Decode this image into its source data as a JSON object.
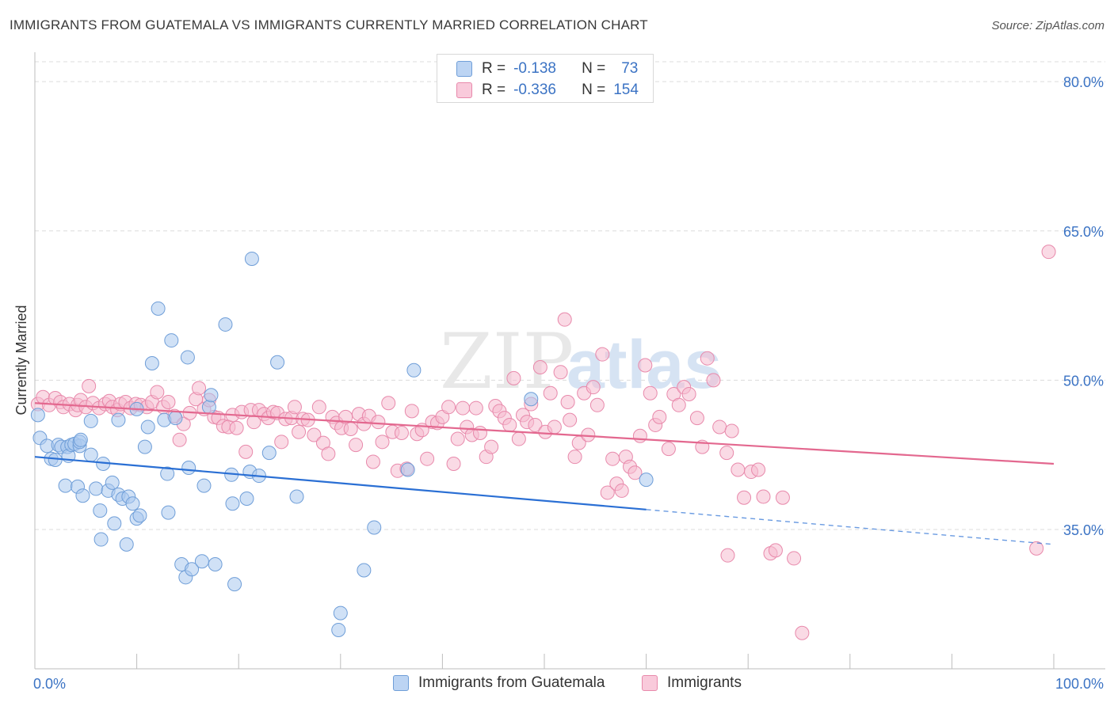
{
  "header": {
    "title": "IMMIGRANTS FROM GUATEMALA VS IMMIGRANTS CURRENTLY MARRIED CORRELATION CHART",
    "source": "Source: ZipAtlas.com"
  },
  "watermark": {
    "zip": "ZIP",
    "atlas": "atlas"
  },
  "legend_top": {
    "rows": [
      {
        "r_label": "R =",
        "r_value": "-0.138",
        "n_label": "N =",
        "n_value": "73"
      },
      {
        "r_label": "R =",
        "r_value": "-0.336",
        "n_label": "N =",
        "n_value": "154"
      }
    ]
  },
  "legend_bottom": {
    "items": [
      {
        "label": "Immigrants from Guatemala"
      },
      {
        "label": "Immigrants"
      }
    ]
  },
  "colors": {
    "blue_fill": "#aac8ee",
    "blue_stroke": "#6f9ed8",
    "blue_line": "#2a6fd4",
    "pink_fill": "#f6bcd0",
    "pink_stroke": "#e889ab",
    "pink_line": "#e3688f",
    "tick_label": "#3b73c4",
    "grid": "#dcdcdc"
  },
  "chart_data": {
    "type": "scatter",
    "title": "IMMIGRANTS FROM GUATEMALA VS IMMIGRANTS CURRENTLY MARRIED CORRELATION CHART",
    "xlabel": "",
    "ylabel": "Currently Married",
    "xlim": [
      0,
      100
    ],
    "ylim": [
      21,
      82
    ],
    "x_tick_labels": [
      "0.0%",
      "100.0%"
    ],
    "y_ticks": [
      35,
      50,
      65,
      80
    ],
    "y_tick_labels": [
      "35.0%",
      "50.0%",
      "65.0%",
      "80.0%"
    ],
    "grid": true,
    "legend_position": "top-center",
    "series": [
      {
        "name": "Immigrants from Guatemala",
        "color": "#aac8ee",
        "trend": {
          "x": [
            0,
            60
          ],
          "y": [
            42.3,
            37.0
          ],
          "dashed_to": [
            100,
            33.5
          ]
        },
        "points": [
          [
            0.5,
            44.2
          ],
          [
            1.2,
            43.4
          ],
          [
            1.6,
            42.1
          ],
          [
            2.0,
            42.0
          ],
          [
            2.3,
            43.5
          ],
          [
            2.6,
            43.3
          ],
          [
            3.2,
            43.3
          ],
          [
            3.3,
            42.4
          ],
          [
            3.6,
            43.5
          ],
          [
            3.9,
            43.6
          ],
          [
            4.4,
            43.4
          ],
          [
            4.4,
            43.8
          ],
          [
            4.5,
            44.0
          ],
          [
            3.0,
            39.4
          ],
          [
            4.2,
            39.3
          ],
          [
            4.7,
            38.4
          ],
          [
            5.5,
            42.5
          ],
          [
            6.0,
            39.1
          ],
          [
            6.4,
            36.9
          ],
          [
            6.5,
            34.0
          ],
          [
            6.7,
            41.6
          ],
          [
            7.2,
            38.9
          ],
          [
            7.6,
            39.7
          ],
          [
            7.8,
            35.6
          ],
          [
            8.2,
            38.5
          ],
          [
            8.6,
            38.1
          ],
          [
            9.0,
            33.5
          ],
          [
            9.2,
            38.3
          ],
          [
            9.6,
            37.6
          ],
          [
            10.0,
            36.1
          ],
          [
            10.3,
            36.4
          ],
          [
            10.8,
            43.3
          ],
          [
            11.1,
            45.3
          ],
          [
            11.5,
            51.7
          ],
          [
            12.1,
            57.2
          ],
          [
            12.7,
            46.0
          ],
          [
            13.0,
            40.6
          ],
          [
            13.1,
            36.7
          ],
          [
            13.4,
            54.0
          ],
          [
            13.8,
            46.2
          ],
          [
            14.4,
            31.5
          ],
          [
            14.8,
            30.2
          ],
          [
            15.0,
            52.3
          ],
          [
            15.1,
            41.2
          ],
          [
            15.4,
            31.0
          ],
          [
            16.4,
            31.8
          ],
          [
            16.6,
            39.4
          ],
          [
            17.1,
            47.3
          ],
          [
            17.3,
            48.5
          ],
          [
            17.7,
            31.5
          ],
          [
            18.7,
            55.6
          ],
          [
            19.3,
            40.5
          ],
          [
            19.4,
            37.6
          ],
          [
            19.6,
            29.5
          ],
          [
            20.8,
            38.1
          ],
          [
            21.1,
            40.8
          ],
          [
            21.3,
            62.2
          ],
          [
            22.0,
            40.4
          ],
          [
            23.0,
            42.7
          ],
          [
            23.8,
            51.8
          ],
          [
            25.7,
            38.3
          ],
          [
            29.8,
            24.9
          ],
          [
            30.0,
            26.6
          ],
          [
            32.3,
            30.9
          ],
          [
            33.3,
            35.2
          ],
          [
            36.6,
            41.0
          ],
          [
            37.2,
            51.0
          ],
          [
            48.7,
            48.1
          ],
          [
            10.0,
            47.1
          ],
          [
            60.0,
            40.0
          ],
          [
            5.5,
            45.9
          ],
          [
            8.2,
            46.0
          ],
          [
            0.3,
            46.5
          ]
        ]
      },
      {
        "name": "Immigrants",
        "color": "#f6bcd0",
        "trend": {
          "x": [
            0,
            100
          ],
          "y": [
            47.7,
            41.6
          ]
        },
        "points": [
          [
            0.3,
            47.6
          ],
          [
            0.8,
            48.3
          ],
          [
            1.4,
            47.5
          ],
          [
            2.0,
            48.2
          ],
          [
            2.5,
            47.8
          ],
          [
            2.8,
            47.3
          ],
          [
            3.4,
            47.6
          ],
          [
            4.0,
            47.0
          ],
          [
            4.2,
            47.5
          ],
          [
            4.5,
            48.0
          ],
          [
            5.0,
            47.3
          ],
          [
            5.3,
            49.4
          ],
          [
            5.7,
            47.7
          ],
          [
            6.3,
            47.2
          ],
          [
            6.9,
            47.6
          ],
          [
            7.3,
            47.9
          ],
          [
            7.6,
            47.3
          ],
          [
            8.1,
            47.0
          ],
          [
            8.4,
            47.6
          ],
          [
            8.9,
            47.8
          ],
          [
            9.4,
            47.2
          ],
          [
            9.9,
            47.6
          ],
          [
            10.4,
            47.5
          ],
          [
            11.0,
            47.3
          ],
          [
            11.5,
            47.8
          ],
          [
            12.0,
            48.8
          ],
          [
            12.6,
            47.3
          ],
          [
            13.1,
            47.8
          ],
          [
            13.7,
            46.4
          ],
          [
            14.2,
            44.0
          ],
          [
            14.6,
            45.6
          ],
          [
            15.2,
            46.7
          ],
          [
            15.8,
            48.1
          ],
          [
            16.1,
            49.2
          ],
          [
            16.6,
            47.1
          ],
          [
            17.1,
            48.0
          ],
          [
            17.6,
            46.3
          ],
          [
            18.0,
            46.2
          ],
          [
            18.5,
            45.4
          ],
          [
            19.0,
            45.3
          ],
          [
            19.4,
            46.5
          ],
          [
            19.8,
            45.2
          ],
          [
            20.3,
            46.8
          ],
          [
            20.7,
            42.8
          ],
          [
            21.2,
            47.0
          ],
          [
            21.5,
            45.8
          ],
          [
            22.0,
            47.0
          ],
          [
            22.5,
            46.6
          ],
          [
            22.9,
            46.2
          ],
          [
            23.4,
            46.8
          ],
          [
            23.8,
            46.7
          ],
          [
            24.2,
            43.8
          ],
          [
            24.6,
            46.1
          ],
          [
            25.2,
            46.2
          ],
          [
            25.5,
            47.3
          ],
          [
            25.9,
            44.8
          ],
          [
            26.3,
            46.1
          ],
          [
            26.8,
            46.0
          ],
          [
            27.4,
            44.5
          ],
          [
            27.9,
            47.3
          ],
          [
            28.3,
            43.7
          ],
          [
            28.8,
            42.6
          ],
          [
            29.2,
            46.3
          ],
          [
            29.6,
            45.7
          ],
          [
            30.1,
            45.2
          ],
          [
            30.5,
            46.3
          ],
          [
            31.0,
            45.1
          ],
          [
            31.5,
            43.5
          ],
          [
            31.8,
            46.6
          ],
          [
            32.3,
            45.6
          ],
          [
            32.8,
            46.4
          ],
          [
            33.2,
            41.8
          ],
          [
            33.7,
            45.8
          ],
          [
            34.1,
            43.8
          ],
          [
            34.7,
            47.7
          ],
          [
            35.1,
            44.8
          ],
          [
            35.6,
            40.9
          ],
          [
            36.0,
            44.7
          ],
          [
            36.5,
            41.1
          ],
          [
            37.0,
            46.9
          ],
          [
            37.5,
            44.6
          ],
          [
            38.0,
            45.0
          ],
          [
            38.5,
            42.1
          ],
          [
            39.0,
            45.8
          ],
          [
            39.5,
            45.7
          ],
          [
            40.0,
            46.3
          ],
          [
            40.6,
            47.3
          ],
          [
            41.1,
            41.6
          ],
          [
            41.5,
            44.1
          ],
          [
            42.0,
            47.2
          ],
          [
            42.4,
            45.3
          ],
          [
            42.9,
            44.5
          ],
          [
            43.3,
            47.2
          ],
          [
            43.7,
            44.7
          ],
          [
            44.3,
            42.3
          ],
          [
            44.8,
            43.3
          ],
          [
            45.2,
            47.4
          ],
          [
            45.6,
            46.9
          ],
          [
            46.1,
            46.2
          ],
          [
            46.6,
            45.5
          ],
          [
            47.0,
            50.2
          ],
          [
            47.5,
            44.1
          ],
          [
            47.9,
            46.5
          ],
          [
            48.3,
            45.8
          ],
          [
            48.7,
            47.6
          ],
          [
            49.1,
            45.5
          ],
          [
            49.6,
            51.3
          ],
          [
            50.1,
            44.8
          ],
          [
            50.6,
            48.7
          ],
          [
            51.0,
            45.3
          ],
          [
            51.6,
            50.8
          ],
          [
            52.0,
            56.1
          ],
          [
            52.5,
            46.0
          ],
          [
            53.0,
            42.3
          ],
          [
            53.4,
            43.7
          ],
          [
            53.9,
            48.7
          ],
          [
            54.3,
            44.5
          ],
          [
            54.8,
            49.3
          ],
          [
            55.2,
            47.5
          ],
          [
            55.7,
            52.6
          ],
          [
            56.2,
            38.7
          ],
          [
            56.7,
            42.1
          ],
          [
            57.1,
            39.6
          ],
          [
            57.6,
            38.9
          ],
          [
            58.0,
            42.3
          ],
          [
            58.4,
            41.3
          ],
          [
            58.9,
            40.7
          ],
          [
            59.4,
            44.4
          ],
          [
            59.9,
            51.5
          ],
          [
            60.4,
            48.7
          ],
          [
            60.9,
            45.5
          ],
          [
            61.3,
            46.3
          ],
          [
            62.2,
            43.1
          ],
          [
            62.7,
            48.6
          ],
          [
            63.2,
            47.5
          ],
          [
            63.7,
            49.3
          ],
          [
            64.2,
            48.6
          ],
          [
            65.0,
            46.2
          ],
          [
            65.5,
            43.3
          ],
          [
            66.0,
            52.2
          ],
          [
            66.6,
            50.0
          ],
          [
            67.2,
            45.3
          ],
          [
            67.9,
            42.7
          ],
          [
            68.4,
            44.9
          ],
          [
            69.0,
            41.0
          ],
          [
            69.6,
            38.2
          ],
          [
            70.3,
            40.8
          ],
          [
            71.0,
            41.0
          ],
          [
            71.5,
            38.3
          ],
          [
            72.2,
            32.6
          ],
          [
            72.7,
            32.9
          ],
          [
            73.4,
            38.2
          ],
          [
            74.5,
            32.1
          ],
          [
            75.3,
            24.6
          ],
          [
            98.3,
            33.1
          ],
          [
            99.5,
            62.9
          ],
          [
            52.3,
            47.8
          ],
          [
            68.0,
            32.4
          ]
        ]
      }
    ]
  }
}
